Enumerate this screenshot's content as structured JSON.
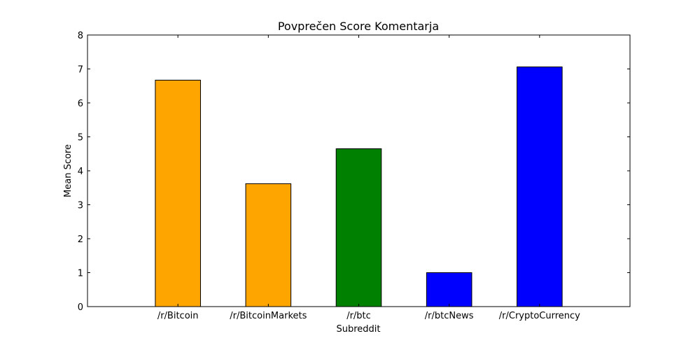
{
  "chart_data": {
    "type": "bar",
    "title": "Povprečen Score Komentarja",
    "xlabel": "Subreddit",
    "ylabel": "Mean Score",
    "ylim": [
      0,
      8
    ],
    "yticks": [
      0,
      1,
      2,
      3,
      4,
      5,
      6,
      7,
      8
    ],
    "categories": [
      "/r/Bitcoin",
      "/r/BitcoinMarkets",
      "/r/btc",
      "/r/btcNews",
      "/r/CryptoCurrency"
    ],
    "values": [
      6.67,
      3.62,
      4.65,
      1.0,
      7.06
    ],
    "bar_colors": [
      "#FFA500",
      "#FFA500",
      "#008000",
      "#0000FF",
      "#0000FF"
    ],
    "grid": false,
    "legend": false
  }
}
